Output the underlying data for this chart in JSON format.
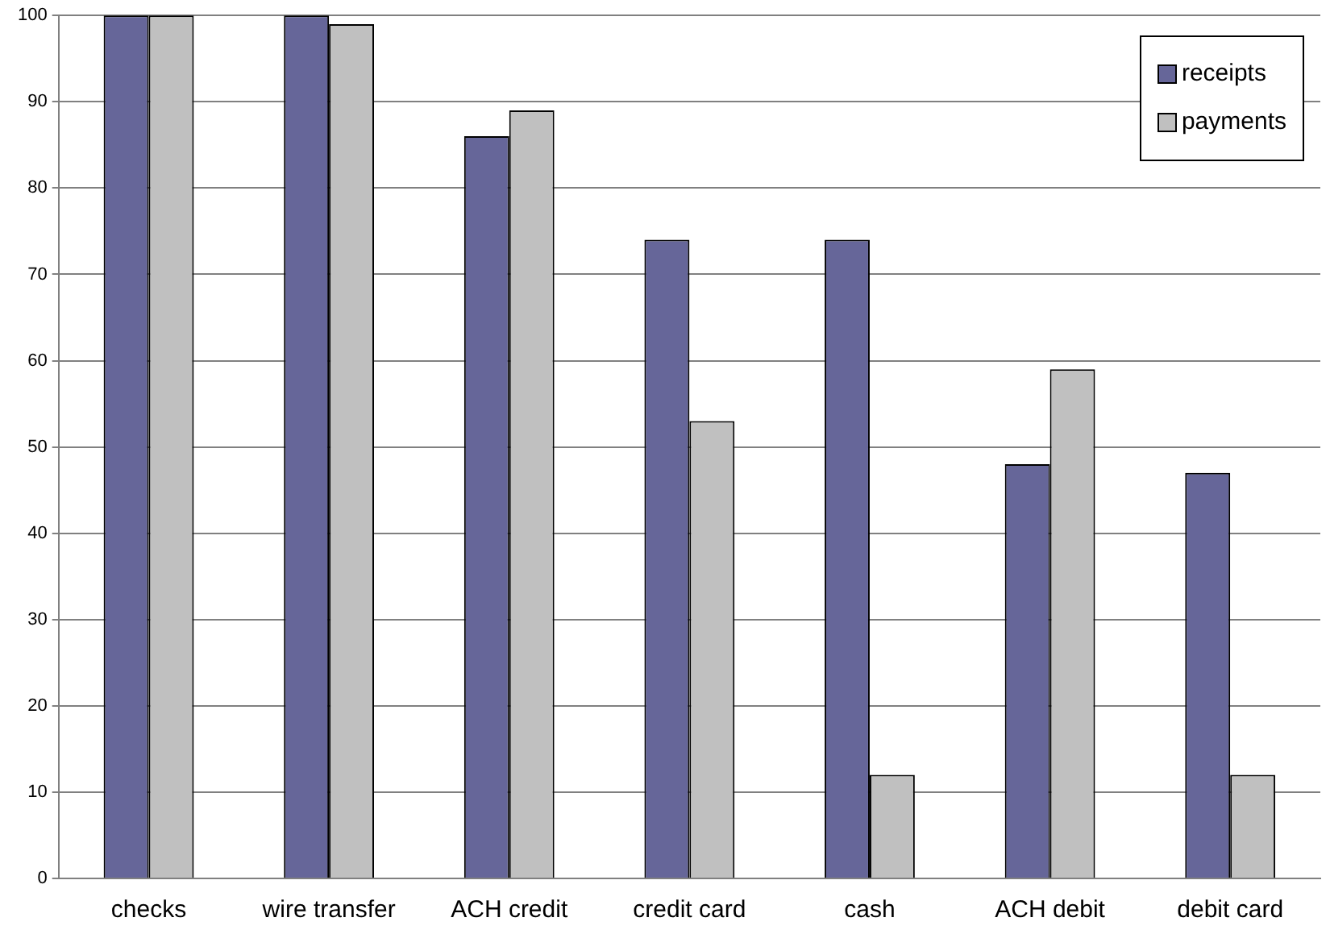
{
  "chart_data": {
    "type": "bar",
    "categories": [
      "checks",
      "wire transfer",
      "ACH credit",
      "credit card",
      "cash",
      "ACH debit",
      "debit card"
    ],
    "series": [
      {
        "name": "receipts",
        "color": "#666699",
        "values": [
          100,
          100,
          86,
          74,
          74,
          48,
          47
        ]
      },
      {
        "name": "payments",
        "color": "#c0c0c0",
        "values": [
          100,
          99,
          89,
          53,
          12,
          59,
          12
        ]
      }
    ],
    "ylim": [
      0,
      100
    ],
    "yticks": [
      0,
      10,
      20,
      30,
      40,
      50,
      60,
      70,
      80,
      90,
      100
    ],
    "grid": "y",
    "legend": "top right"
  }
}
